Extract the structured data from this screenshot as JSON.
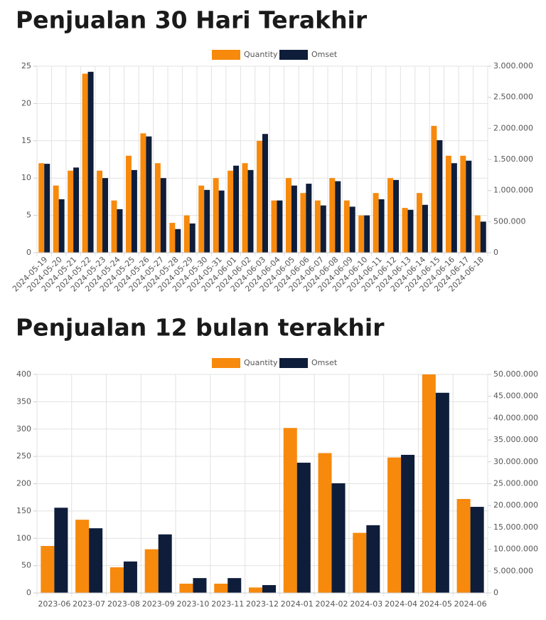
{
  "chart_data": [
    {
      "type": "bar",
      "title": "Penjualan 30 Hari Terakhir",
      "categories": [
        "2024-05-19",
        "2024-05-20",
        "2024-05-21",
        "2024-05-22",
        "2024-05-23",
        "2024-05-24",
        "2024-05-25",
        "2024-05-26",
        "2024-05-27",
        "2024-05-28",
        "2024-05-29",
        "2024-05-30",
        "2024-05-31",
        "2024-06-01",
        "2024-06-02",
        "2024-06-03",
        "2024-06-04",
        "2024-06-05",
        "2024-06-06",
        "2024-06-07",
        "2024-06-08",
        "2024-06-09",
        "2024-06-10",
        "2024-06-11",
        "2024-06-12",
        "2024-06-13",
        "2024-06-14",
        "2024-06-15",
        "2024-06-16",
        "2024-06-17",
        "2024-06-18"
      ],
      "series": [
        {
          "name": "Quantity",
          "color": "#f7890c",
          "axis": "y",
          "values": [
            12,
            9,
            11,
            24,
            11,
            7,
            13,
            16,
            12,
            4,
            5,
            9,
            10,
            11,
            12,
            15,
            7,
            10,
            8,
            7,
            10,
            7,
            5,
            8,
            10,
            6,
            8,
            17,
            13,
            13,
            5
          ]
        },
        {
          "name": "Omset",
          "color": "#0e1d3a",
          "axis": "y2",
          "values": [
            1430000,
            860000,
            1370000,
            2910000,
            1200000,
            700000,
            1330000,
            1870000,
            1200000,
            380000,
            470000,
            1010000,
            1000000,
            1400000,
            1330000,
            1910000,
            840000,
            1080000,
            1110000,
            760000,
            1150000,
            740000,
            600000,
            860000,
            1170000,
            690000,
            770000,
            1810000,
            1440000,
            1480000,
            500000
          ]
        }
      ],
      "ylim": [
        0,
        25
      ],
      "yticks": [
        0,
        5,
        10,
        15,
        20,
        25
      ],
      "y2lim": [
        0,
        3000000
      ],
      "y2ticks": [
        0,
        {
          "value": 500000,
          "label": "500.000"
        },
        {
          "value": 1000000,
          "label": "1.000.000"
        },
        {
          "value": 1500000,
          "label": "1.500.000"
        },
        {
          "value": 2000000,
          "label": "2.000.000"
        },
        {
          "value": 2500000,
          "label": "2.500.000"
        },
        {
          "value": 3000000,
          "label": "3.000.000"
        }
      ],
      "grid": true,
      "legend": "top"
    },
    {
      "type": "bar",
      "title": "Penjualan 12 bulan terakhir",
      "categories": [
        "2023-06",
        "2023-07",
        "2023-08",
        "2023-09",
        "2023-10",
        "2023-11",
        "2023-12",
        "2024-01",
        "2024-02",
        "2024-03",
        "2024-04",
        "2024-05",
        "2024-06"
      ],
      "series": [
        {
          "name": "Quantity",
          "color": "#f7890c",
          "axis": "y",
          "values": [
            86,
            134,
            47,
            80,
            17,
            17,
            10,
            302,
            256,
            110,
            248,
            400,
            172
          ]
        },
        {
          "name": "Omset",
          "color": "#0e1d3a",
          "axis": "y2",
          "values": [
            19500000,
            14800000,
            7200000,
            13400000,
            3400000,
            3400000,
            1800000,
            29800000,
            25100000,
            15500000,
            31600000,
            45800000,
            19700000
          ]
        }
      ],
      "ylim": [
        0,
        400
      ],
      "yticks": [
        0,
        50,
        100,
        150,
        200,
        250,
        300,
        350,
        400
      ],
      "y2lim": [
        0,
        50000000
      ],
      "y2ticks": [
        0,
        {
          "value": 5000000,
          "label": "5.000.000"
        },
        {
          "value": 10000000,
          "label": "10.000.000"
        },
        {
          "value": 15000000,
          "label": "15.000.000"
        },
        {
          "value": 20000000,
          "label": "20.000.000"
        },
        {
          "value": 25000000,
          "label": "25.000.000"
        },
        {
          "value": 30000000,
          "label": "30.000.000"
        },
        {
          "value": 35000000,
          "label": "35.000.000"
        },
        {
          "value": 40000000,
          "label": "40.000.000"
        },
        {
          "value": 45000000,
          "label": "45.000.000"
        },
        {
          "value": 50000000,
          "label": "50.000.000"
        }
      ],
      "grid": true,
      "legend": "top"
    }
  ]
}
